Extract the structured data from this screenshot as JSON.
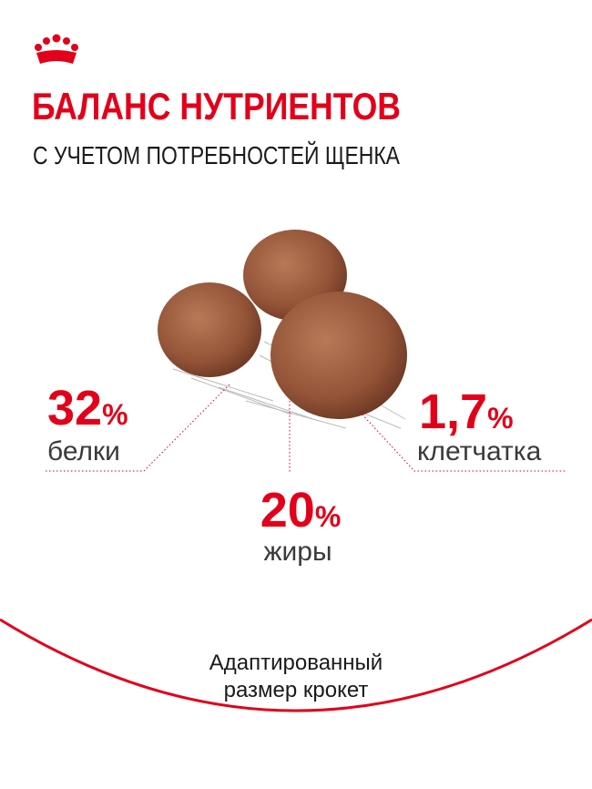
{
  "header": {
    "title": "БАЛАНС НУТРИЕНТОВ",
    "subtitle": "С УЧЕТОМ ПОТРЕБНОСТЕЙ ЩЕНКА"
  },
  "stats": [
    {
      "value": "32",
      "unit": "%",
      "label": "белки"
    },
    {
      "value": "20",
      "unit": "%",
      "label": "жиры"
    },
    {
      "value": "1,7",
      "unit": "%",
      "label": "клетчатка"
    }
  ],
  "footer": {
    "lines": [
      "Адаптированный",
      "размер крокет"
    ]
  }
}
